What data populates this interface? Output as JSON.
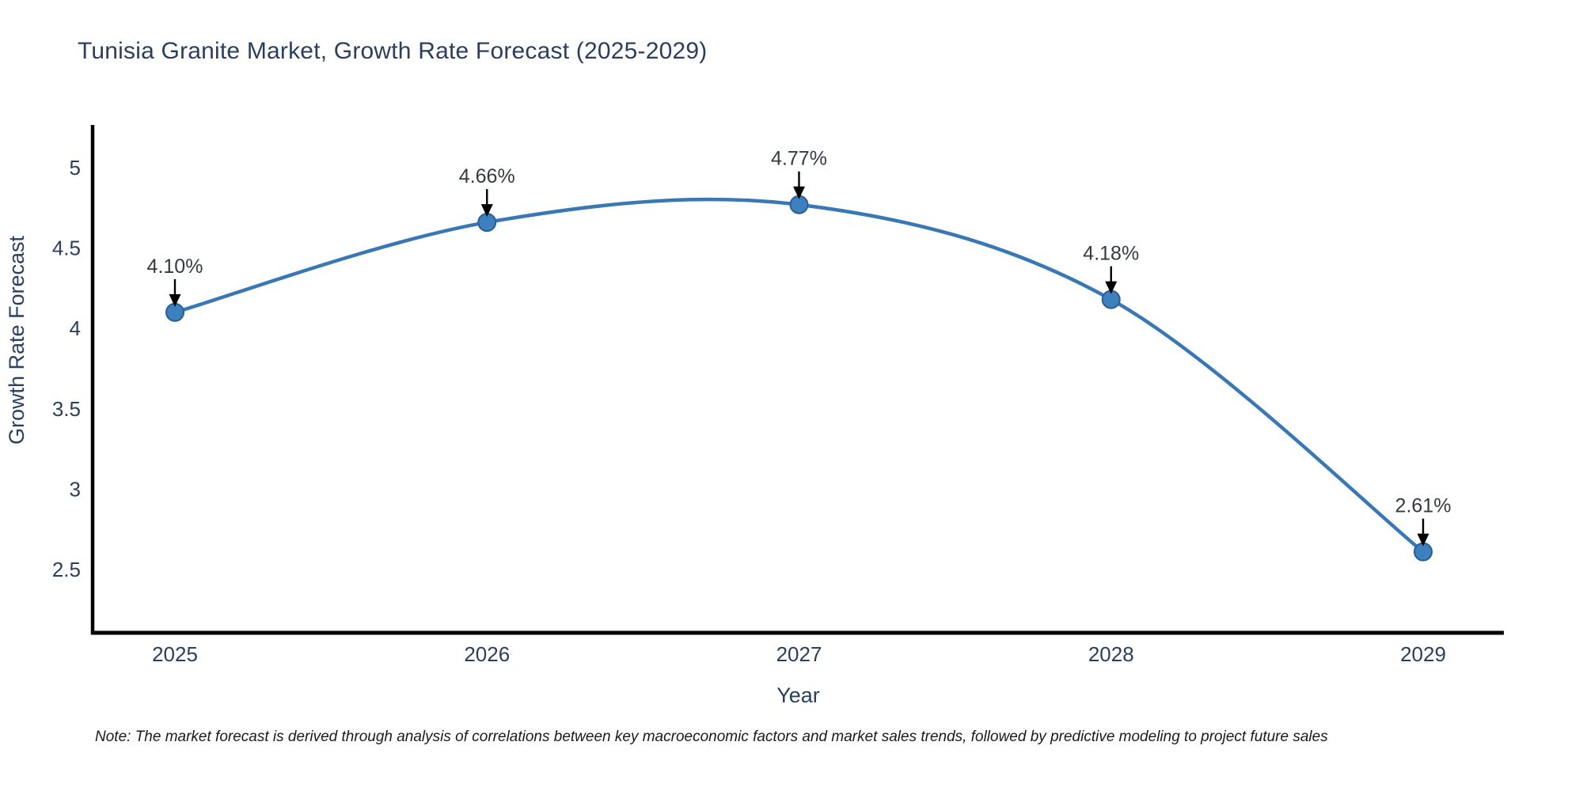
{
  "title": "Tunisia Granite Market, Growth Rate Forecast (2025-2029)",
  "note": "Note: The market forecast is derived through analysis of correlations between key macroeconomic factors and market sales trends, followed by predictive modeling to project future sales",
  "chart_data": {
    "type": "line",
    "title": "Tunisia Granite Market, Growth Rate Forecast (2025-2029)",
    "xlabel": "Year",
    "ylabel": "Growth Rate Forecast",
    "categories": [
      "2025",
      "2026",
      "2027",
      "2028",
      "2029"
    ],
    "series": [
      {
        "name": "Growth Rate Forecast",
        "values": [
          4.1,
          4.66,
          4.77,
          4.18,
          2.61
        ],
        "point_labels": [
          "4.10%",
          "4.66%",
          "4.77%",
          "4.18%",
          "2.61%"
        ]
      }
    ],
    "yticks": [
      2.5,
      3,
      3.5,
      4,
      4.5,
      5
    ],
    "ylim": [
      2.12,
      5.26
    ],
    "grid": false,
    "legend": "none",
    "line_shape": "spline",
    "annotations_have_arrows": true,
    "colors": {
      "line": "#3a78b5",
      "marker_fill": "#3d80c0",
      "marker_edge": "#2a5f8f",
      "axis": "#000000",
      "tick_text": "#2a3f5f",
      "title_text": "#2a3f5f",
      "annotation_text": "#343a40",
      "arrow": "#000000",
      "note_text": "#1a1a1a",
      "background": "#ffffff"
    }
  }
}
